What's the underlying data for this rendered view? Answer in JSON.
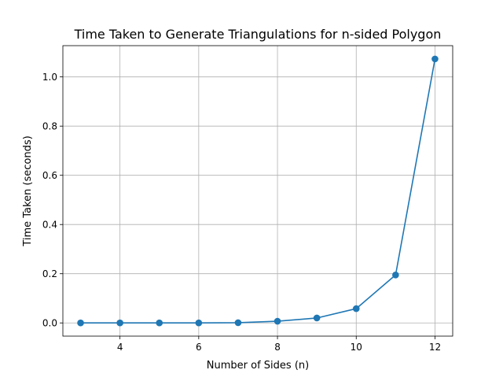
{
  "chart_data": {
    "type": "line",
    "title": "Time Taken to Generate Triangulations for n-sided Polygon",
    "xlabel": "Number of Sides (n)",
    "ylabel": "Time Taken (seconds)",
    "xlim": [
      2.55,
      12.45
    ],
    "ylim": [
      -0.0537,
      1.127
    ],
    "xticks": [
      4,
      6,
      8,
      10,
      12
    ],
    "xtick_labels": [
      "4",
      "6",
      "8",
      "10",
      "12"
    ],
    "yticks": [
      0.0,
      0.2,
      0.4,
      0.6,
      0.8,
      1.0
    ],
    "ytick_labels": [
      "0.0",
      "0.2",
      "0.4",
      "0.6",
      "0.8",
      "1.0"
    ],
    "grid": true,
    "series": [
      {
        "color": "#1f77b4",
        "marker": "circle",
        "x": [
          3,
          4,
          5,
          6,
          7,
          8,
          9,
          10,
          11,
          12
        ],
        "y": [
          0.0,
          0.0,
          0.0,
          0.0,
          0.001,
          0.007,
          0.02,
          0.058,
          0.195,
          1.073
        ]
      }
    ]
  }
}
